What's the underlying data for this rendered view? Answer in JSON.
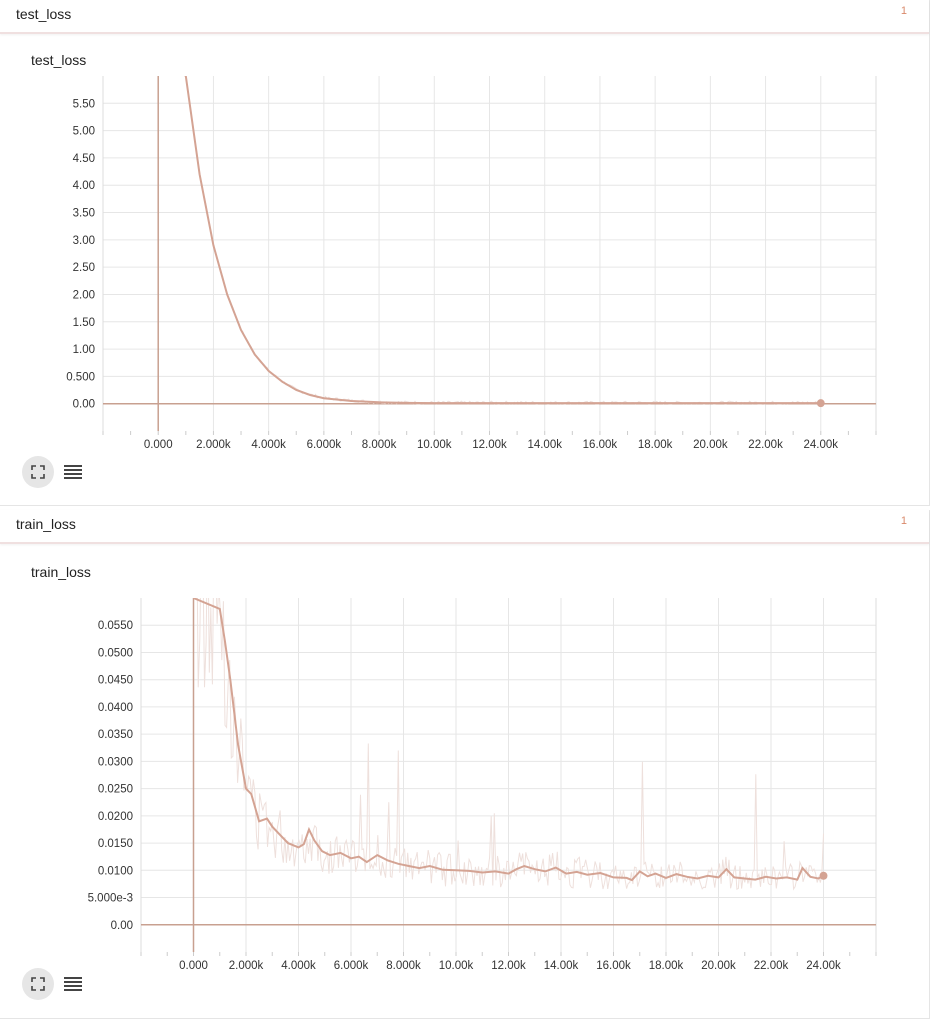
{
  "colors": {
    "line": "#d4a393",
    "raw": "#eee0dc",
    "grid": "#e6e6e6",
    "axis": "#c8a090",
    "count": "#d9896b"
  },
  "icons": {
    "expand": "expand-icon",
    "list": "list-icon"
  },
  "cards": [
    {
      "name": "test_loss",
      "count": "1",
      "chart_title": "test_loss"
    },
    {
      "name": "train_loss",
      "count": "1",
      "chart_title": "train_loss"
    }
  ],
  "chart_data": [
    {
      "type": "line",
      "title": "test_loss",
      "xlabel": "",
      "ylabel": "",
      "xlim": [
        -2000,
        26000
      ],
      "ylim": [
        -0.5,
        6.0
      ],
      "grid": true,
      "x_ticks": [
        0,
        2000,
        4000,
        6000,
        8000,
        10000,
        12000,
        14000,
        16000,
        18000,
        20000,
        22000,
        24000
      ],
      "x_tick_labels": [
        "0.000",
        "2.000k",
        "4.000k",
        "6.000k",
        "8.000k",
        "10.00k",
        "12.00k",
        "14.00k",
        "16.00k",
        "18.00k",
        "20.00k",
        "22.00k",
        "24.00k"
      ],
      "y_ticks": [
        0,
        0.5,
        1.0,
        1.5,
        2.0,
        2.5,
        3.0,
        3.5,
        4.0,
        4.5,
        5.0,
        5.5
      ],
      "y_tick_labels": [
        "0.00",
        "0.500",
        "1.00",
        "1.50",
        "2.00",
        "2.50",
        "3.00",
        "3.50",
        "4.00",
        "4.50",
        "5.00",
        "5.50"
      ],
      "series": [
        {
          "x": [
            0,
            1000,
            1500,
            2000,
            2500,
            3000,
            3500,
            4000,
            4500,
            5000,
            5500,
            6000,
            7000,
            8000,
            9000,
            10000,
            12000,
            14000,
            16000,
            18000,
            20000,
            22000,
            24000
          ],
          "y": [
            6.5,
            6.0,
            4.2,
            2.9,
            2.0,
            1.35,
            0.9,
            0.6,
            0.4,
            0.25,
            0.16,
            0.1,
            0.05,
            0.025,
            0.015,
            0.01,
            0.01,
            0.01,
            0.01,
            0.01,
            0.01,
            0.01,
            0.01
          ]
        }
      ],
      "end_point": {
        "x": 24000,
        "y": 0.01
      }
    },
    {
      "type": "line",
      "title": "train_loss",
      "xlabel": "",
      "ylabel": "",
      "xlim": [
        -2000,
        26000
      ],
      "ylim": [
        -0.005,
        0.06
      ],
      "grid": true,
      "x_ticks": [
        0,
        2000,
        4000,
        6000,
        8000,
        10000,
        12000,
        14000,
        16000,
        18000,
        20000,
        22000,
        24000
      ],
      "x_tick_labels": [
        "0.000",
        "2.000k",
        "4.000k",
        "6.000k",
        "8.000k",
        "10.00k",
        "12.00k",
        "14.00k",
        "16.00k",
        "18.00k",
        "20.00k",
        "22.00k",
        "24.00k"
      ],
      "y_ticks": [
        0,
        0.005,
        0.01,
        0.015,
        0.02,
        0.025,
        0.03,
        0.035,
        0.04,
        0.045,
        0.05,
        0.055
      ],
      "y_tick_labels": [
        "0.00",
        "5.000e-3",
        "0.0100",
        "0.0150",
        "0.0200",
        "0.0250",
        "0.0300",
        "0.0350",
        "0.0400",
        "0.0450",
        "0.0500",
        "0.0550"
      ],
      "series": [
        {
          "x": [
            0,
            1000,
            1200,
            1400,
            1700,
            2000,
            2200,
            2500,
            2800,
            3000,
            3300,
            3600,
            4000,
            4200,
            4400,
            4600,
            4900,
            5200,
            5600,
            6000,
            6300,
            6600,
            7000,
            7400,
            7800,
            8200,
            8600,
            9000,
            9500,
            10000,
            10500,
            11000,
            11500,
            12000,
            12300,
            12600,
            13000,
            13400,
            13800,
            14200,
            14600,
            15000,
            15500,
            16000,
            16500,
            16700,
            17000,
            17300,
            17600,
            18000,
            18400,
            18800,
            19200,
            19600,
            20000,
            20300,
            20600,
            21000,
            21400,
            21800,
            22200,
            22600,
            23000,
            23200,
            23500,
            23800,
            24000
          ],
          "y": [
            0.06,
            0.058,
            0.052,
            0.045,
            0.033,
            0.025,
            0.024,
            0.019,
            0.0195,
            0.018,
            0.0165,
            0.015,
            0.0142,
            0.0148,
            0.0175,
            0.0155,
            0.0135,
            0.0128,
            0.0132,
            0.0122,
            0.0125,
            0.0115,
            0.0128,
            0.0118,
            0.0112,
            0.0108,
            0.0104,
            0.0108,
            0.0101,
            0.01,
            0.0099,
            0.0096,
            0.0098,
            0.0094,
            0.0102,
            0.0108,
            0.0102,
            0.0098,
            0.0105,
            0.0094,
            0.0097,
            0.0092,
            0.0095,
            0.0087,
            0.0086,
            0.0082,
            0.0098,
            0.0089,
            0.0094,
            0.0086,
            0.0093,
            0.0088,
            0.0085,
            0.009,
            0.0087,
            0.0102,
            0.0087,
            0.0085,
            0.0083,
            0.0088,
            0.0085,
            0.0087,
            0.0083,
            0.0104,
            0.0088,
            0.0085,
            0.009
          ]
        }
      ],
      "end_point": {
        "x": 24000,
        "y": 0.009
      }
    }
  ]
}
